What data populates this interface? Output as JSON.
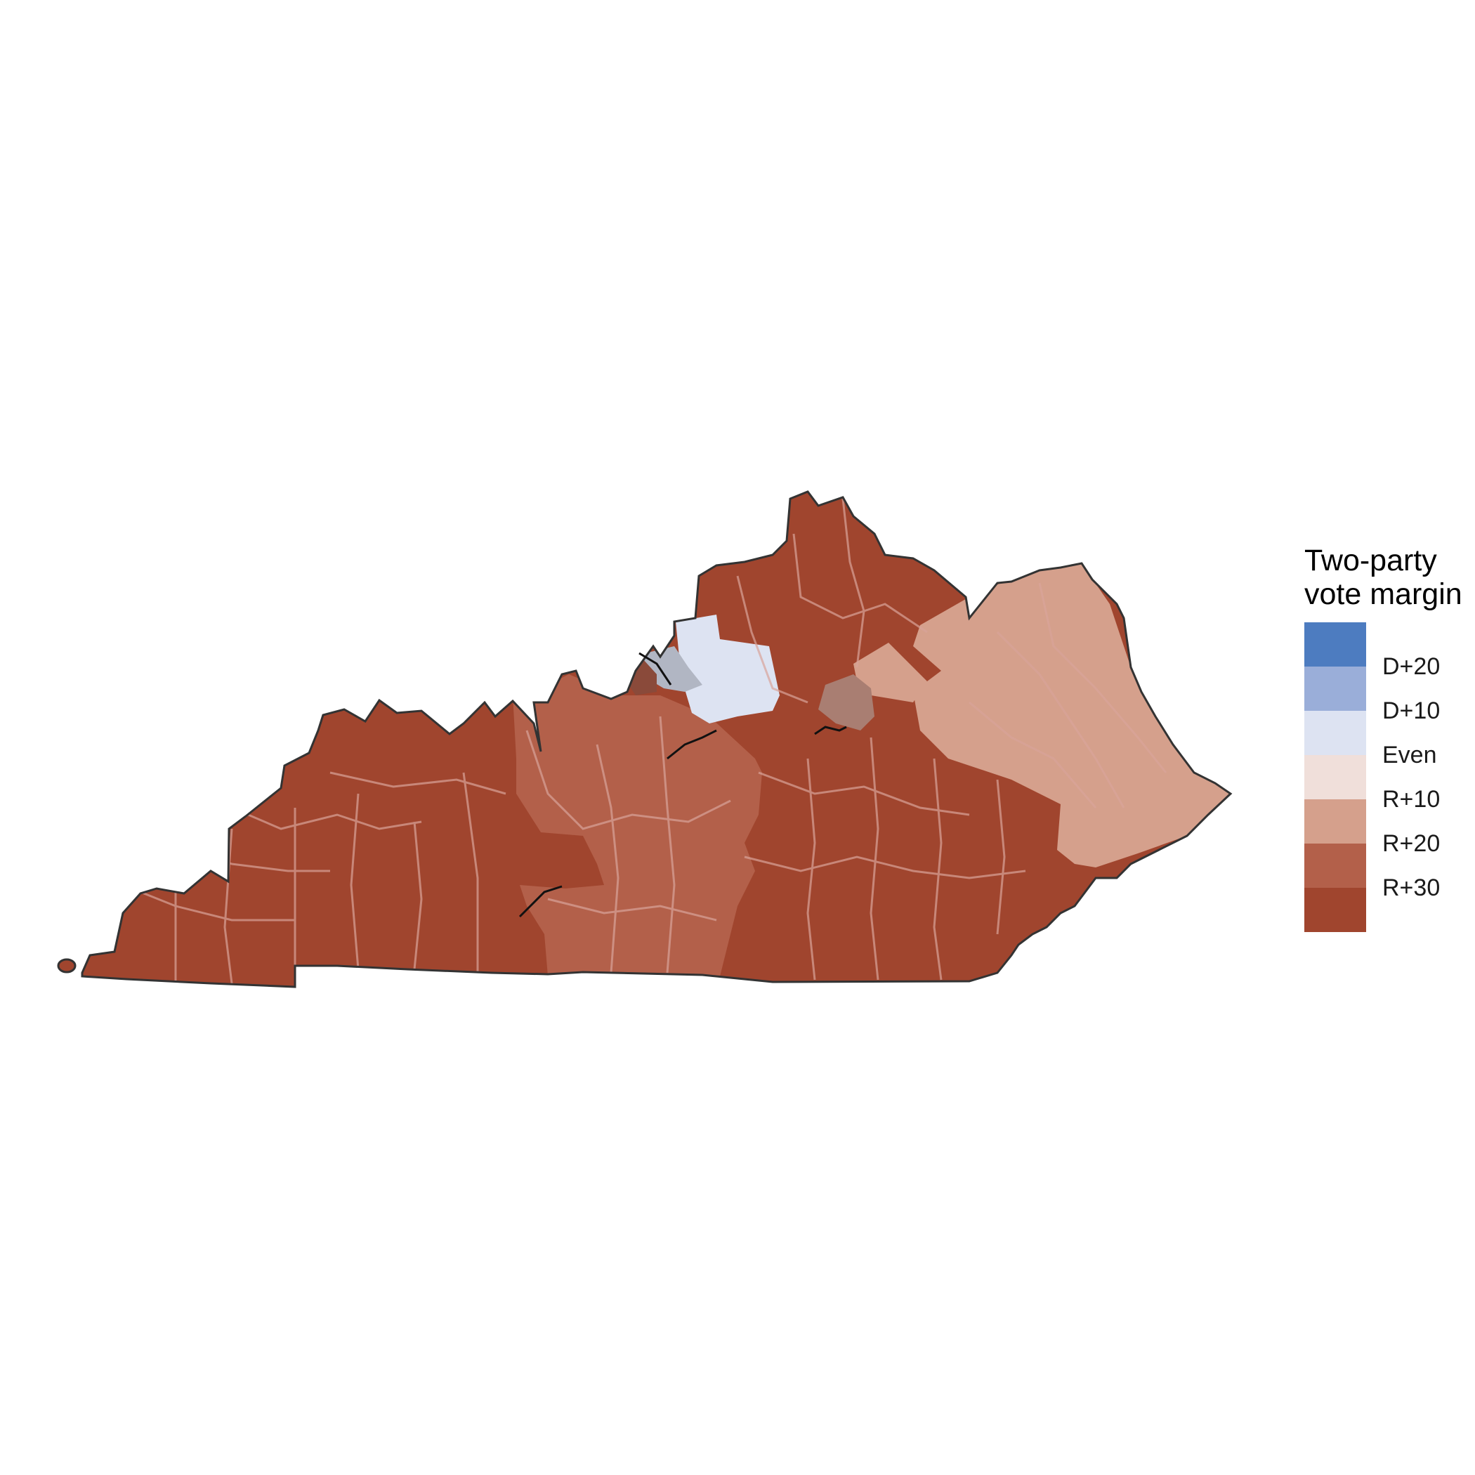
{
  "map": {
    "region": "Kentucky",
    "unit": "county",
    "fill_colors": {
      "r30_plus": "#a0452e",
      "r20": "#b3604a",
      "r10": "#d5a08c",
      "d_even": "#dde3f2",
      "mixed_dark": "#a97e72",
      "border_state": "#3a3a3a",
      "border_county": "#d9a49a"
    }
  },
  "legend": {
    "title_line1": "Two-party",
    "title_line2": "vote margin",
    "colors": [
      "#4d7cc0",
      "#9aaed9",
      "#dde3f2",
      "#f0dfda",
      "#d5a08c",
      "#b3604a",
      "#a0452e"
    ],
    "labels": [
      "D+20",
      "D+10",
      "Even",
      "R+10",
      "R+20",
      "R+30"
    ]
  }
}
